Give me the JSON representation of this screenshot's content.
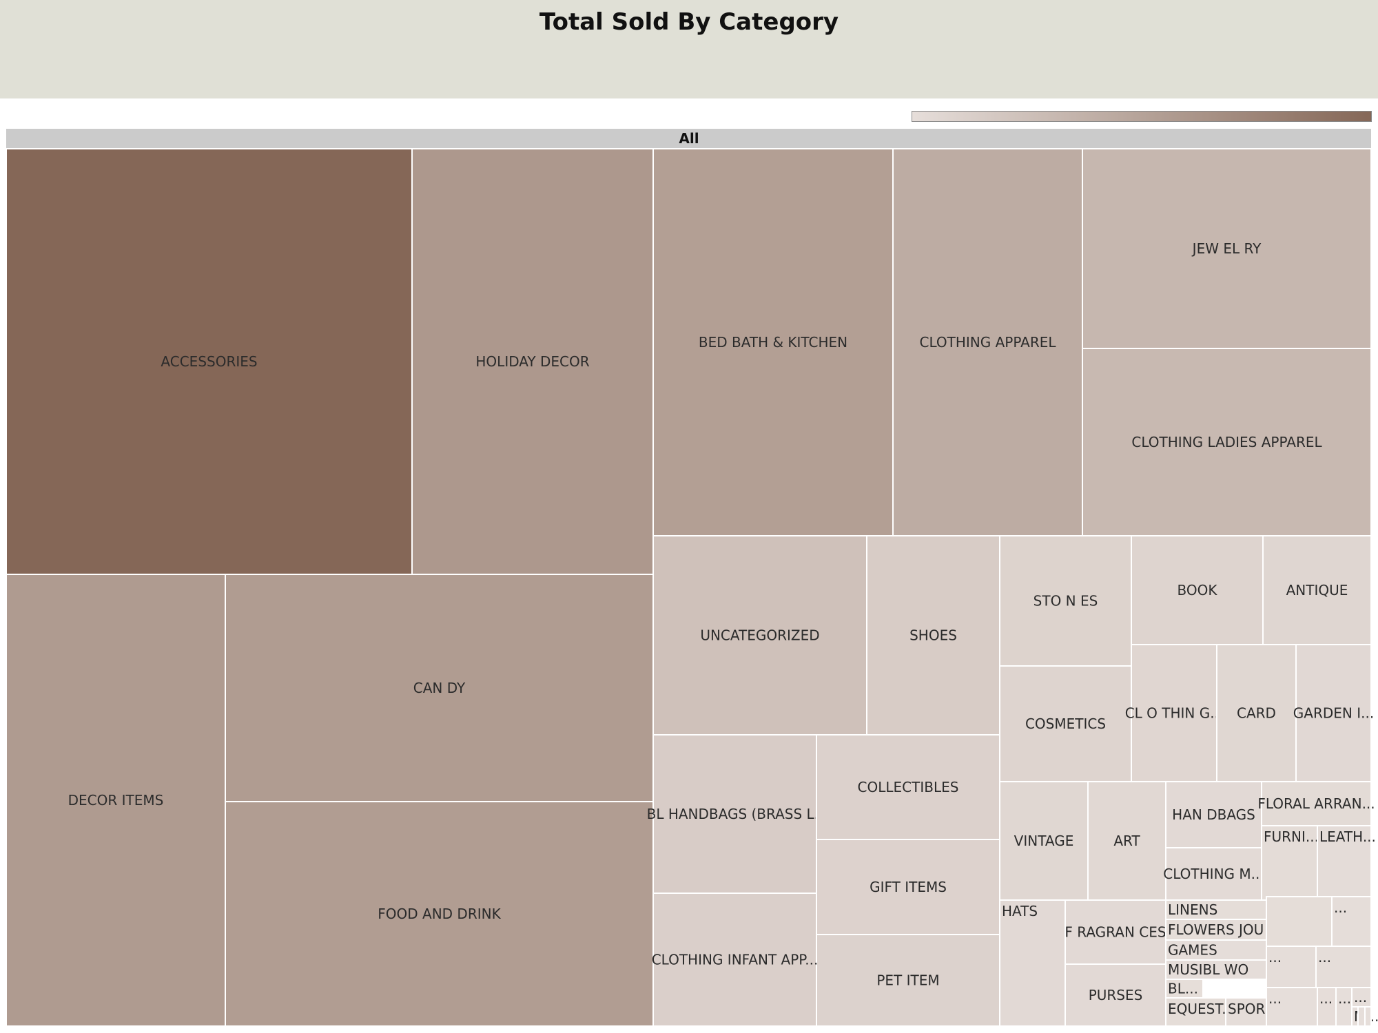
{
  "chart_data": {
    "type": "treemap",
    "title": "Total Sold By Category",
    "root_label": "All",
    "colorscale": {
      "low": "#e6deda",
      "high": "#856757"
    },
    "categories": [
      {
        "label": "ACCESSORIES",
        "value": 226800
      },
      {
        "label": "HOLIDAY DECOR",
        "value": 132900
      },
      {
        "label": "BED BATH & KITCHEN",
        "value": 120600
      },
      {
        "label": "CLOTHING APPAREL",
        "value": 95200
      },
      {
        "label": "JEW EL RY",
        "value": 74500
      },
      {
        "label": "CLOTHING LADIES APPAREL",
        "value": 70600
      },
      {
        "label": "DECOR ITEMS",
        "value": 128400
      },
      {
        "label": "CAN DY",
        "value": 125700
      },
      {
        "label": "FOOD AND DRINK",
        "value": 124800
      },
      {
        "label": "UNCATEGORIZED",
        "value": 54900
      },
      {
        "label": "SHOES",
        "value": 34200
      },
      {
        "label": "STO N ES",
        "value": 22200
      },
      {
        "label": "BOOK",
        "value": 18600
      },
      {
        "label": "ANTIQUE",
        "value": 15900
      },
      {
        "label": "COSMETICS",
        "value": 19700
      },
      {
        "label": "CL O THIN G...",
        "value": 15300
      },
      {
        "label": "CARD",
        "value": 14000
      },
      {
        "label": "GARDEN I...",
        "value": 11400
      },
      {
        "label": "BL HANDBAGS (BRASS L..",
        "value": 33700
      },
      {
        "label": "COLLECTIBLES",
        "value": 24700
      },
      {
        "label": "GIFT ITEMS",
        "value": 22400
      },
      {
        "label": "PET ITEM",
        "value": 22800
      },
      {
        "label": "CLOTHING INFANT APP...",
        "value": 28600
      },
      {
        "label": "VINTAGE",
        "value": 13600
      },
      {
        "label": "ART",
        "value": 11800
      },
      {
        "label": "HAN DBAGS",
        "value": 9000
      },
      {
        "label": "CLOTHING M...",
        "value": 7400
      },
      {
        "label": "FLORAL ARRAN...",
        "value": 6600
      },
      {
        "label": "FURNI...",
        "value": 4800
      },
      {
        "label": "LEATH...",
        "value": 4700
      },
      {
        "label": "HATS",
        "value": 9600
      },
      {
        "label": "F RAGRAN CES",
        "value": 9200
      },
      {
        "label": "PURSES",
        "value": 9200
      },
      {
        "label": "LINENS",
        "value": 3100
      },
      {
        "label": "FLOWERS JOU",
        "value": 3000
      },
      {
        "label": "GAMES",
        "value": 2800
      },
      {
        "label": "MUSIBL WO",
        "value": 2700
      },
      {
        "label": "BL...",
        "value": 1300
      },
      {
        "label": "EQUEST...",
        "value": 3000
      },
      {
        "label": "SPOR",
        "value": 2900
      },
      {
        "label": "",
        "value": 3000
      },
      {
        "label": "...",
        "value": 2500
      },
      {
        "label": "...",
        "value": 1900
      },
      {
        "label": "...",
        "value": 1600
      },
      {
        "label": "...",
        "value": 1200
      },
      {
        "label": "...",
        "value": 1400
      },
      {
        "label": "...",
        "value": 900
      },
      {
        "label": "...",
        "value": 800
      },
      {
        "label": "M...",
        "value": 1100
      },
      {
        "label": "",
        "value": 500
      },
      {
        "label": "",
        "value": 400
      }
    ]
  }
}
